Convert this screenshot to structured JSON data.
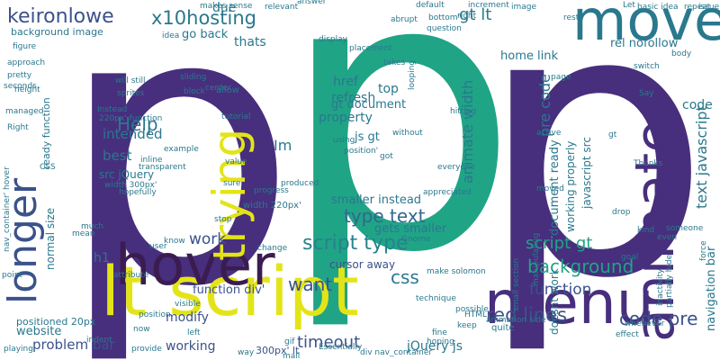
{
  "word_cloud": {
    "words": [
      {
        "text": "p",
        "color": "#472f7d"
      },
      {
        "text": "p",
        "color": "#20a486"
      },
      {
        "text": "p",
        "color": "#472f7d"
      },
      {
        "text": "lt script",
        "color": "#e3e418"
      },
      {
        "text": "hover",
        "color": "#3b1c51"
      },
      {
        "text": "menu",
        "color": "#472f7d"
      },
      {
        "text": "animate",
        "color": "#472f7d"
      },
      {
        "text": "move",
        "color": "#2a788e"
      },
      {
        "text": "trying",
        "color": "#e3e418"
      },
      {
        "text": "longer",
        "color": "#3b528b"
      },
      {
        "text": "keironlowe",
        "color": "#3b528b"
      },
      {
        "text": "x10hosting",
        "color": "#2a788e"
      },
      {
        "text": "Help",
        "color": "#2a788e"
      },
      {
        "text": "intended",
        "color": "#2a788e"
      },
      {
        "text": "best",
        "color": "#2a788e"
      },
      {
        "text": "Im",
        "color": "#2a788e"
      },
      {
        "text": "thats",
        "color": "#2a788e"
      },
      {
        "text": "gt lt",
        "color": "#2a788e"
      },
      {
        "text": "script type",
        "color": "#26828e"
      },
      {
        "text": "type text",
        "color": "#31688e"
      },
      {
        "text": "script gt",
        "color": "#20a486"
      },
      {
        "text": "background",
        "color": "#20a486"
      },
      {
        "text": "red lines",
        "color": "#3b528b"
      },
      {
        "text": "code pre",
        "color": "#3b528b"
      },
      {
        "text": "timeout",
        "color": "#3b528b"
      },
      {
        "text": "want",
        "color": "#3b528b"
      },
      {
        "text": "css",
        "color": "#2a788e"
      },
      {
        "text": "work",
        "color": "#3b528b"
      },
      {
        "text": "href",
        "color": "#2a788e"
      },
      {
        "text": "refresh",
        "color": "#2a788e"
      },
      {
        "text": "top",
        "color": "#2a788e"
      },
      {
        "text": "gt document",
        "color": "#2a788e"
      },
      {
        "text": "property",
        "color": "#2a788e"
      },
      {
        "text": "js gt",
        "color": "#2a788e"
      },
      {
        "text": "smaller instead",
        "color": "#2a788e"
      },
      {
        "text": "gets smaller",
        "color": "#2a788e"
      },
      {
        "text": "cursor away",
        "color": "#3b528b"
      },
      {
        "text": "function",
        "color": "#3b528b"
      },
      {
        "text": "modify",
        "color": "#3b528b"
      },
      {
        "text": "working",
        "color": "#3b528b"
      },
      {
        "text": "jQuery js",
        "color": "#2a788e"
      },
      {
        "text": "problem bar",
        "color": "#3b528b"
      },
      {
        "text": "website",
        "color": "#2a788e"
      },
      {
        "text": "h1",
        "color": "#2a788e"
      },
      {
        "text": "function div'",
        "color": "#3b528b"
      },
      {
        "text": "300px' lt",
        "color": "#3b528b"
      },
      {
        "text": "due",
        "color": "#2a788e"
      },
      {
        "text": "go back",
        "color": "#2a788e"
      },
      {
        "text": "background image",
        "color": "#2a788e"
      },
      {
        "text": "animate width",
        "color": "#2a788e"
      },
      {
        "text": "pre code",
        "color": "#2a788e"
      },
      {
        "text": "code",
        "color": "#2a788e"
      },
      {
        "text": "text javascript",
        "color": "#2a788e"
      },
      {
        "text": "document ready",
        "color": "#2a788e"
      },
      {
        "text": "working properly",
        "color": "#2a788e"
      },
      {
        "text": "javascript src",
        "color": "#2a788e"
      },
      {
        "text": "doesnt work",
        "color": "#2a788e"
      },
      {
        "text": "home link",
        "color": "#2a788e"
      },
      {
        "text": "rel nofollow",
        "color": "#2a788e"
      },
      {
        "text": "navigation bar",
        "color": "#2a788e"
      },
      {
        "text": "normal size",
        "color": "#2a788e"
      },
      {
        "text": "positioned 20px",
        "color": "#2a788e"
      },
      {
        "text": "src jQuery",
        "color": "#2a788e"
      },
      {
        "text": "width 300px'",
        "color": "#2a788e"
      },
      {
        "text": "220px' function",
        "color": "#2a788e"
      },
      {
        "text": "ready function",
        "color": "#2a788e"
      },
      {
        "text": "will still",
        "color": "#2a788e"
      },
      {
        "text": "makes sense",
        "color": "#2a788e"
      },
      {
        "text": "animation side",
        "color": "#2a788e"
      },
      {
        "text": "nav_container' hover",
        "color": "#2a788e"
      },
      {
        "text": "basic idea",
        "color": "#2a788e"
      },
      {
        "text": "small section",
        "color": "#2a788e"
      },
      {
        "text": "partially hide",
        "color": "#2a788e"
      },
      {
        "text": "make solomon",
        "color": "#2a788e"
      },
      {
        "text": "div nav_container",
        "color": "#2a788e"
      },
      {
        "text": "quite",
        "color": "#2a788e"
      },
      {
        "text": "width 220px'",
        "color": "#2a788e"
      },
      {
        "text": "figure",
        "color": "#2a788e"
      },
      {
        "text": "approach",
        "color": "#2a788e"
      },
      {
        "text": "pretty",
        "color": "#2a788e"
      },
      {
        "text": "seconds",
        "color": "#2a788e"
      },
      {
        "text": "managed",
        "color": "#2a788e"
      },
      {
        "text": "center",
        "color": "#2a788e"
      },
      {
        "text": "allow",
        "color": "#2a788e"
      },
      {
        "text": "sliding",
        "color": "#2a788e"
      },
      {
        "text": "hopefully",
        "color": "#2a788e"
      },
      {
        "text": "visible",
        "color": "#2a788e"
      },
      {
        "text": "moved",
        "color": "#2a788e"
      },
      {
        "text": "page",
        "color": "#2a788e"
      },
      {
        "text": "drop",
        "color": "#2a788e"
      },
      {
        "text": "even",
        "color": "#2a788e"
      },
      {
        "text": "goal",
        "color": "#2a788e"
      },
      {
        "text": "tutorial",
        "color": "#2a788e"
      },
      {
        "text": "example",
        "color": "#2a788e"
      },
      {
        "text": "value",
        "color": "#2a788e"
      },
      {
        "text": "sure",
        "color": "#2a788e"
      },
      {
        "text": "stop",
        "color": "#2a788e"
      },
      {
        "text": "user",
        "color": "#2a788e"
      },
      {
        "text": "position",
        "color": "#2a788e"
      },
      {
        "text": "left",
        "color": "#2a788e"
      },
      {
        "text": "playing",
        "color": "#2a788e"
      },
      {
        "text": "HTML",
        "color": "#2a788e"
      },
      {
        "text": "keep",
        "color": "#2a788e"
      },
      {
        "text": "Say",
        "color": "#2a788e"
      },
      {
        "text": "Thanks",
        "color": "#2a788e"
      },
      {
        "text": "appreciated",
        "color": "#2a788e"
      },
      {
        "text": "progress",
        "color": "#2a788e"
      },
      {
        "text": "produced",
        "color": "#2a788e"
      },
      {
        "text": "question",
        "color": "#2a788e"
      },
      {
        "text": "relevant",
        "color": "#2a788e"
      },
      {
        "text": "answer",
        "color": "#2a788e"
      },
      {
        "text": "default",
        "color": "#2a788e"
      },
      {
        "text": "increment",
        "color": "#2a788e"
      },
      {
        "text": "abrupt",
        "color": "#2a788e"
      },
      {
        "text": "placement",
        "color": "#2a788e"
      },
      {
        "text": "display",
        "color": "#2a788e"
      },
      {
        "text": "looping",
        "color": "#2a788e"
      },
      {
        "text": "hitting",
        "color": "#2a788e"
      },
      {
        "text": "using",
        "color": "#2a788e"
      },
      {
        "text": "without",
        "color": "#2a788e"
      },
      {
        "text": "got",
        "color": "#2a788e"
      },
      {
        "text": "position'",
        "color": "#2a788e"
      },
      {
        "text": "everyone",
        "color": "#2a788e"
      },
      {
        "text": "inline",
        "color": "#2a788e"
      },
      {
        "text": "transparent",
        "color": "#2a788e"
      },
      {
        "text": "Essentially",
        "color": "#2a788e"
      },
      {
        "text": "technique",
        "color": "#2a788e"
      },
      {
        "text": "Gnome",
        "color": "#2a788e"
      },
      {
        "text": "change",
        "color": "#2a788e"
      },
      {
        "text": "know",
        "color": "#2a788e"
      },
      {
        "text": "inactivity",
        "color": "#2a788e"
      },
      {
        "text": "manipulating",
        "color": "#2a788e"
      },
      {
        "text": "whenever",
        "color": "#2a788e"
      },
      {
        "text": "someone",
        "color": "#2a788e"
      },
      {
        "text": "kind",
        "color": "#2a788e"
      },
      {
        "text": "force",
        "color": "#2a788e"
      },
      {
        "text": "active",
        "color": "#2a788e"
      },
      {
        "text": "takes",
        "color": "#2a788e"
      },
      {
        "text": "switch",
        "color": "#2a788e"
      },
      {
        "text": "body",
        "color": "#2a788e"
      },
      {
        "text": "repeat",
        "color": "#2a788e"
      },
      {
        "text": "image",
        "color": "#2a788e"
      },
      {
        "text": "issue",
        "color": "#2a788e"
      },
      {
        "text": "idea",
        "color": "#2a788e"
      },
      {
        "text": "block",
        "color": "#2a788e"
      },
      {
        "text": "Right",
        "color": "#2a788e"
      },
      {
        "text": "height",
        "color": "#2a788e"
      },
      {
        "text": "point",
        "color": "#2a788e"
      },
      {
        "text": "mean",
        "color": "#2a788e"
      },
      {
        "text": "now",
        "color": "#2a788e"
      },
      {
        "text": "gif",
        "color": "#2a788e"
      },
      {
        "text": "mall",
        "color": "#2a788e"
      },
      {
        "text": "possible",
        "color": "#2a788e"
      },
      {
        "text": "effect",
        "color": "#2a788e"
      },
      {
        "text": "way",
        "color": "#2a788e"
      },
      {
        "text": "provide",
        "color": "#2a788e"
      },
      {
        "text": "indent",
        "color": "#2a788e"
      },
      {
        "text": "hoping",
        "color": "#2a788e"
      },
      {
        "text": "bottom'",
        "color": "#2a788e"
      },
      {
        "text": "fine",
        "color": "#2a788e"
      },
      {
        "text": "CSS",
        "color": "#2a788e"
      },
      {
        "text": "Instead",
        "color": "#2a788e"
      },
      {
        "text": "sprites",
        "color": "#2a788e"
      },
      {
        "text": "Let",
        "color": "#2a788e"
      },
      {
        "text": "much",
        "color": "#2a788e"
      },
      {
        "text": "attribute",
        "color": "#2a788e"
      },
      {
        "text": "right",
        "color": "#2a788e"
      },
      {
        "text": "gt",
        "color": "#2a788e"
      },
      {
        "text": "rest",
        "color": "#2a788e"
      },
      {
        "text": "OS",
        "color": "#2a788e"
      },
      {
        "text": "image",
        "color": "#2a788e"
      }
    ]
  }
}
